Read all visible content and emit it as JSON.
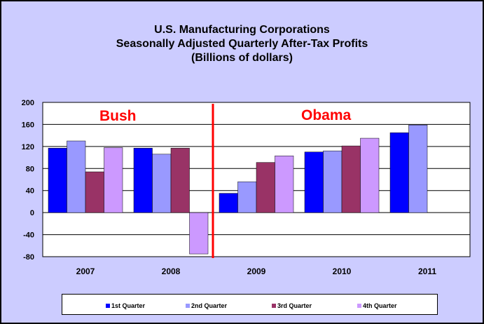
{
  "chart_data": {
    "type": "bar",
    "title_lines": [
      "U.S. Manufacturing Corporations",
      "Seasonally Adjusted Quarterly After-Tax Profits",
      "(Billions of dollars)"
    ],
    "categories": [
      "2007",
      "2008",
      "2009",
      "2010",
      "2011"
    ],
    "series": [
      {
        "name": "1st Quarter",
        "color": "#0000ff",
        "values": [
          117,
          117,
          35,
          110,
          145
        ]
      },
      {
        "name": "2nd Quarter",
        "color": "#9999ff",
        "values": [
          130,
          106,
          56,
          112,
          159
        ]
      },
      {
        "name": "3rd Quarter",
        "color": "#993366",
        "values": [
          74,
          117,
          91,
          121,
          null
        ]
      },
      {
        "name": "4th Quarter",
        "color": "#cc99ff",
        "values": [
          118,
          -75,
          103,
          135,
          null
        ]
      }
    ],
    "ylim": [
      -80,
      200
    ],
    "yticks": [
      "200",
      "160",
      "120",
      "80",
      "40",
      "0",
      "-40",
      "-80"
    ],
    "grid": true,
    "legend_position": "bottom",
    "annotations": [
      {
        "text": "Bush",
        "color": "#ff0000"
      },
      {
        "text": "Obama",
        "color": "#ff0000"
      }
    ],
    "divider_color": "#ff0000"
  }
}
